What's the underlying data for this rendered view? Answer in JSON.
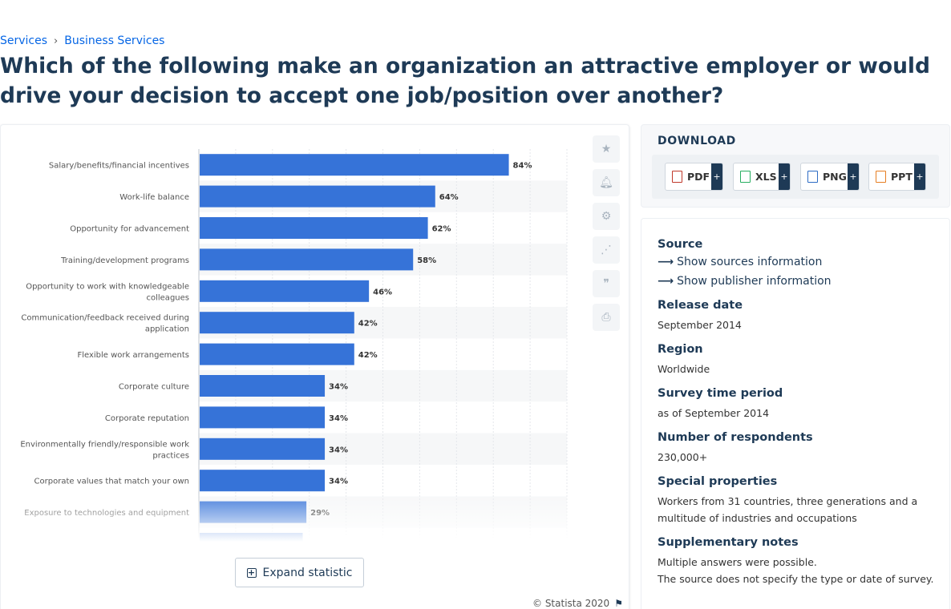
{
  "breadcrumb": {
    "item1": "Services",
    "item2": "Business Services"
  },
  "title": "Which of the following make an organization an attractive employer or would drive your decision to accept one job/position over another?",
  "expand_label": "Expand statistic",
  "copyright": "© Statista 2020",
  "download": {
    "title": "DOWNLOAD",
    "pdf": "PDF",
    "xls": "XLS",
    "png": "PNG",
    "ppt": "PPT",
    "plus": "+"
  },
  "info": {
    "source_h": "Source",
    "show_sources": "Show sources information",
    "show_publisher": "Show publisher information",
    "release_h": "Release date",
    "release_v": "September 2014",
    "region_h": "Region",
    "region_v": "Worldwide",
    "survey_h": "Survey time period",
    "survey_v": "as of September 2014",
    "respondents_h": "Number of respondents",
    "respondents_v": "230,000+",
    "special_h": "Special properties",
    "special_v": "Workers from 31 countries, three generations and a multitude of industries and occupations",
    "notes_h": "Supplementary notes",
    "notes_v1": "Multiple answers were possible.",
    "notes_v2": "The source does not specify the type or date of survey."
  },
  "icons": {
    "favorite": "star-icon",
    "notify": "bell-icon",
    "settings": "gear-icon",
    "share": "share-icon",
    "cite": "quote-icon",
    "print": "print-icon"
  },
  "colors": {
    "bar": "#3673d8",
    "title": "#1e3a56",
    "link": "#0666e5"
  },
  "chart_data": {
    "type": "bar",
    "orientation": "horizontal",
    "categories": [
      [
        "Salary/benefits/financial incentives"
      ],
      [
        "Work-life balance"
      ],
      [
        "Opportunity for advancement"
      ],
      [
        "Training/development programs"
      ],
      [
        "Opportunity to work with knowledgeable",
        "colleagues"
      ],
      [
        "Communication/feedback received during",
        "application"
      ],
      [
        "Flexible work arrangements"
      ],
      [
        "Corporate culture"
      ],
      [
        "Corporate reputation"
      ],
      [
        "Environmentally friendly/responsible work",
        "practices"
      ],
      [
        "Corporate values that match your own"
      ],
      [
        "Exposure to technologies and equipment"
      ]
    ],
    "values": [
      84,
      64,
      62,
      58,
      46,
      42,
      42,
      34,
      34,
      34,
      34,
      29
    ],
    "value_labels": [
      "84%",
      "64%",
      "62%",
      "58%",
      "46%",
      "42%",
      "42%",
      "34%",
      "34%",
      "34%",
      "34%",
      "29%"
    ],
    "partial_next_value": 28,
    "xlim": [
      0,
      100
    ],
    "grid": true
  }
}
